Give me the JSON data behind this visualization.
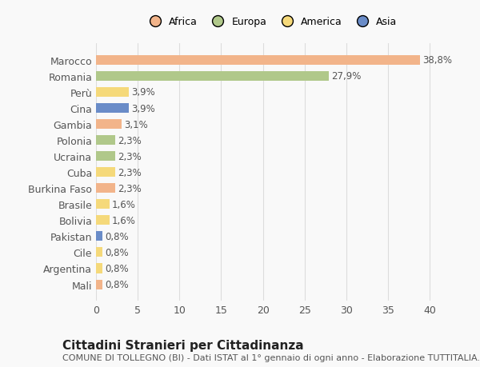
{
  "countries": [
    "Marocco",
    "Romania",
    "Perù",
    "Cina",
    "Gambia",
    "Polonia",
    "Ucraina",
    "Cuba",
    "Burkina Faso",
    "Brasile",
    "Bolivia",
    "Pakistan",
    "Cile",
    "Argentina",
    "Mali"
  ],
  "values": [
    38.8,
    27.9,
    3.9,
    3.9,
    3.1,
    2.3,
    2.3,
    2.3,
    2.3,
    1.6,
    1.6,
    0.8,
    0.8,
    0.8,
    0.8
  ],
  "labels": [
    "38,8%",
    "27,9%",
    "3,9%",
    "3,9%",
    "3,1%",
    "2,3%",
    "2,3%",
    "2,3%",
    "2,3%",
    "1,6%",
    "1,6%",
    "0,8%",
    "0,8%",
    "0,8%",
    "0,8%"
  ],
  "continents": [
    "Africa",
    "Europa",
    "America",
    "Asia",
    "Africa",
    "Europa",
    "Europa",
    "America",
    "Africa",
    "America",
    "America",
    "Asia",
    "America",
    "America",
    "Africa"
  ],
  "colors": {
    "Africa": "#F2B48A",
    "Europa": "#B0C88A",
    "America": "#F5D97A",
    "Asia": "#6A8CC8"
  },
  "legend_order": [
    "Africa",
    "Europa",
    "America",
    "Asia"
  ],
  "legend_colors": [
    "#F2B48A",
    "#B0C88A",
    "#F5D97A",
    "#6A8CC8"
  ],
  "title": "Cittadini Stranieri per Cittadinanza",
  "subtitle": "COMUNE DI TOLLEGNO (BI) - Dati ISTAT al 1° gennaio di ogni anno - Elaborazione TUTTITALIA.IT",
  "xlim": [
    0,
    42
  ],
  "xticks": [
    0,
    5,
    10,
    15,
    20,
    25,
    30,
    35,
    40
  ],
  "background_color": "#f9f9f9",
  "grid_color": "#dddddd",
  "bar_height": 0.6,
  "title_fontsize": 11,
  "subtitle_fontsize": 8,
  "tick_fontsize": 9,
  "label_fontsize": 8.5
}
